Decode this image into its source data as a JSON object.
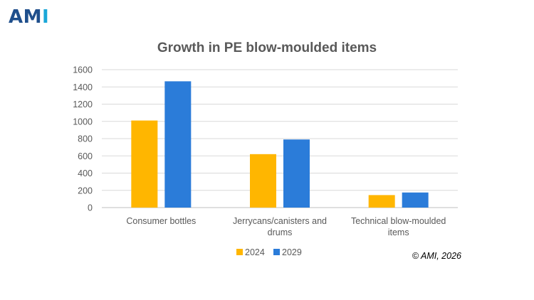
{
  "logo": {
    "part1": "AM",
    "part2": "I",
    "colors": {
      "part1": "#1f4f8c",
      "part2": "#1aa7d8"
    }
  },
  "chart_data": {
    "type": "bar",
    "title": "Growth in PE blow-moulded items",
    "categories": [
      [
        "Consumer bottles"
      ],
      [
        "Jerrycans/canisters and",
        "drums"
      ],
      [
        "Technical blow-moulded",
        "items"
      ]
    ],
    "series": [
      {
        "name": "2024",
        "color": "#ffb600",
        "values": [
          1010,
          620,
          145
        ]
      },
      {
        "name": "2029",
        "color": "#2b7cd9",
        "values": [
          1465,
          790,
          175
        ]
      }
    ],
    "ylim": [
      0,
      1600
    ],
    "yticks": [
      0,
      200,
      400,
      600,
      800,
      1000,
      1200,
      1400,
      1600
    ],
    "grid": true,
    "legend_position": "bottom",
    "xlabel": "",
    "ylabel": ""
  },
  "copyright": "© AMI, 2026"
}
